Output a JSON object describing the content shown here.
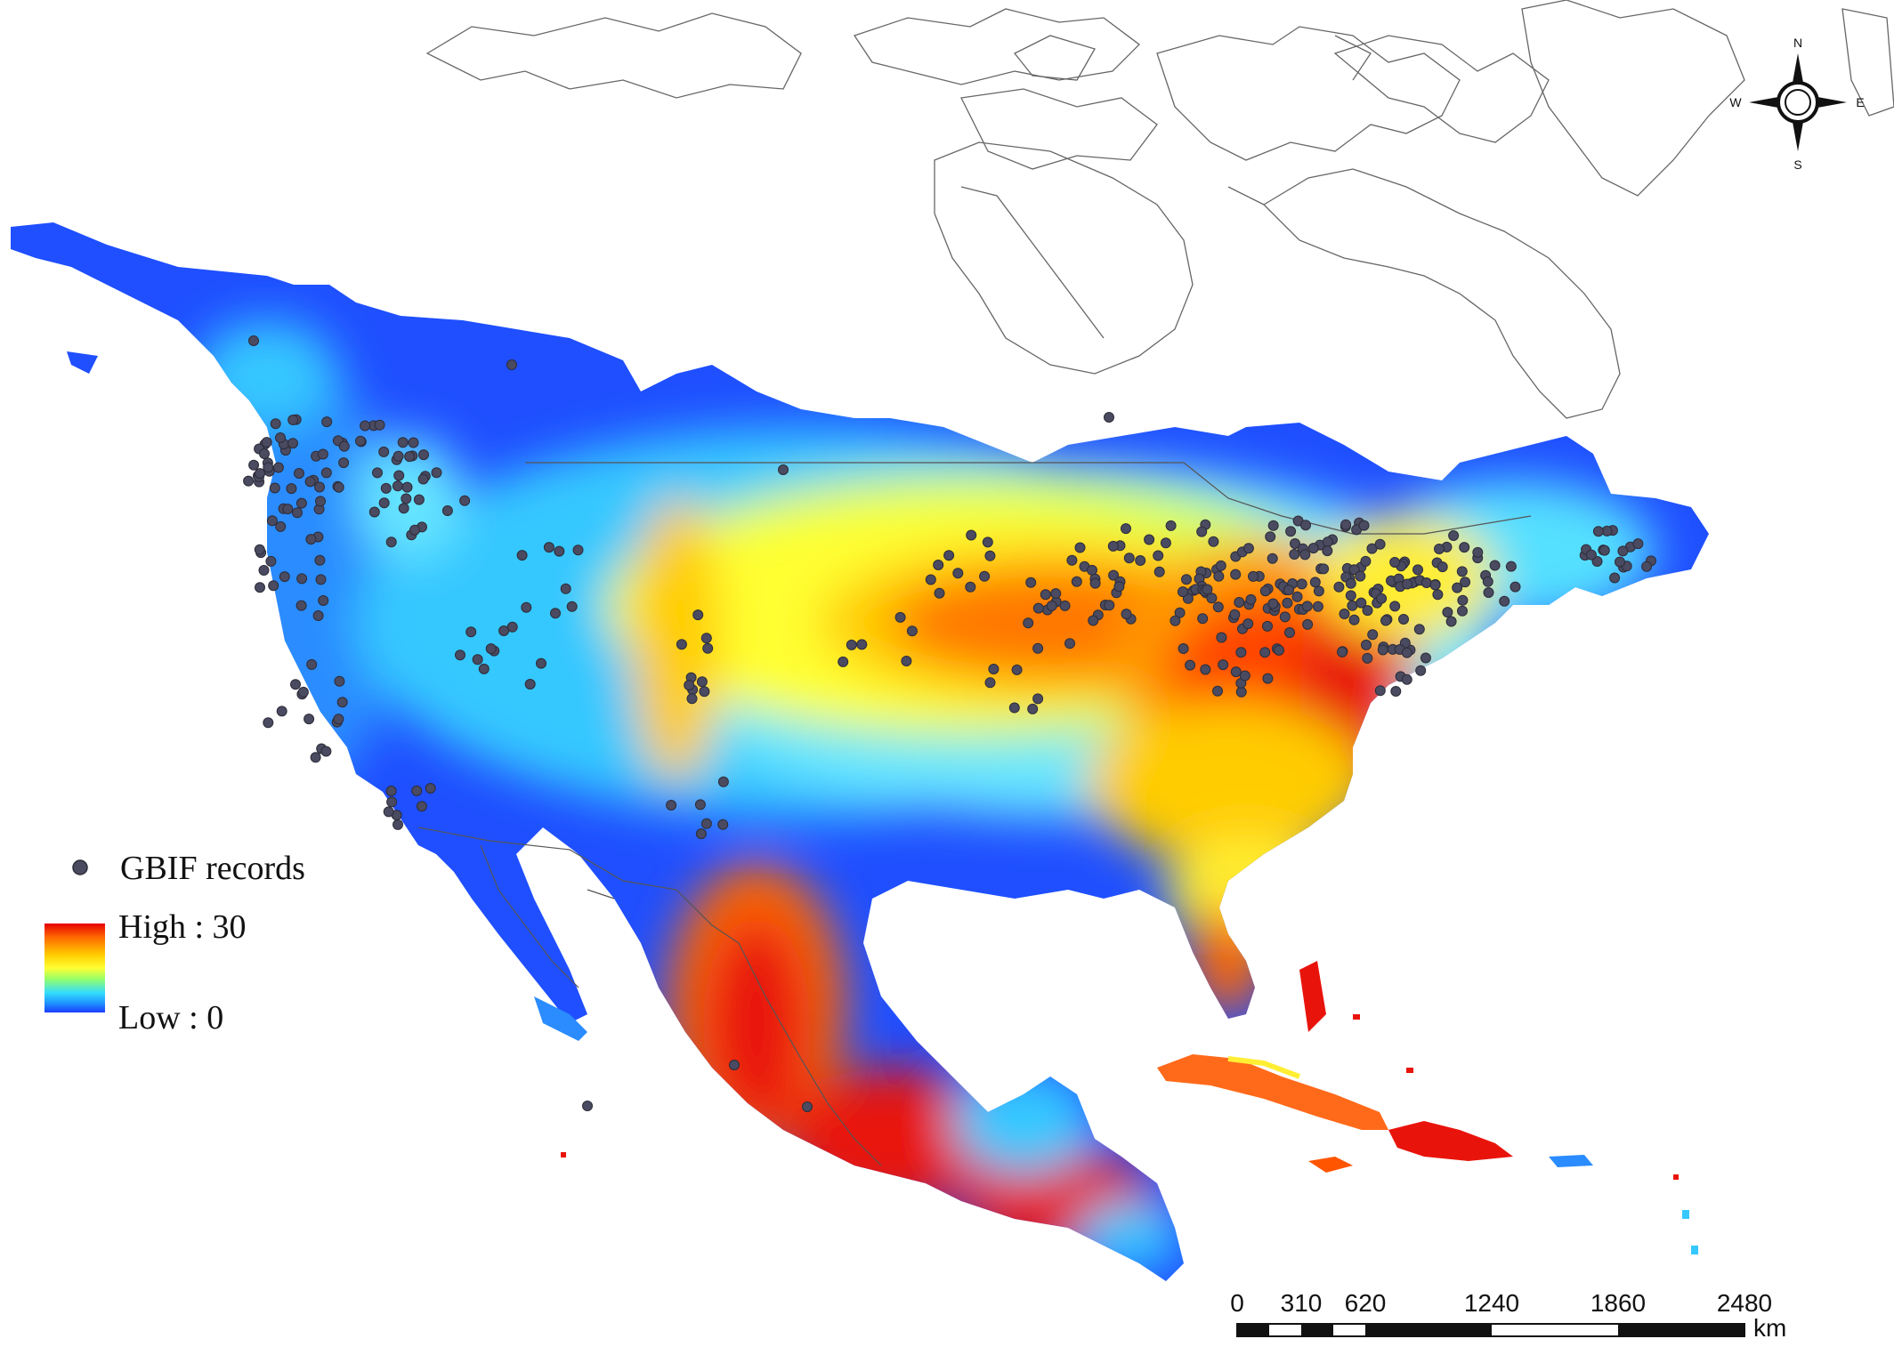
{
  "legend": {
    "points_label": "GBIF records",
    "high_label": "High : 30",
    "low_label": "Low : 0",
    "ramp_colors": [
      "#e60000",
      "#ff6600",
      "#ffcc00",
      "#ffff33",
      "#99ff66",
      "#33ddff",
      "#1e90ff",
      "#1a3cff"
    ],
    "point_color": "#4a4a60"
  },
  "compass": {
    "north": "N",
    "south": "S",
    "east": "E",
    "west": "W"
  },
  "scale_bar": {
    "ticks": [
      "0",
      "310",
      "620",
      "1240",
      "1860",
      "2480"
    ],
    "unit": "km"
  },
  "palette": {
    "low": "#1f4fff",
    "mid_low": "#35c8ff",
    "mid": "#ffff33",
    "mid_high": "#ff9900",
    "high": "#e8140c",
    "outline": "#555555"
  }
}
